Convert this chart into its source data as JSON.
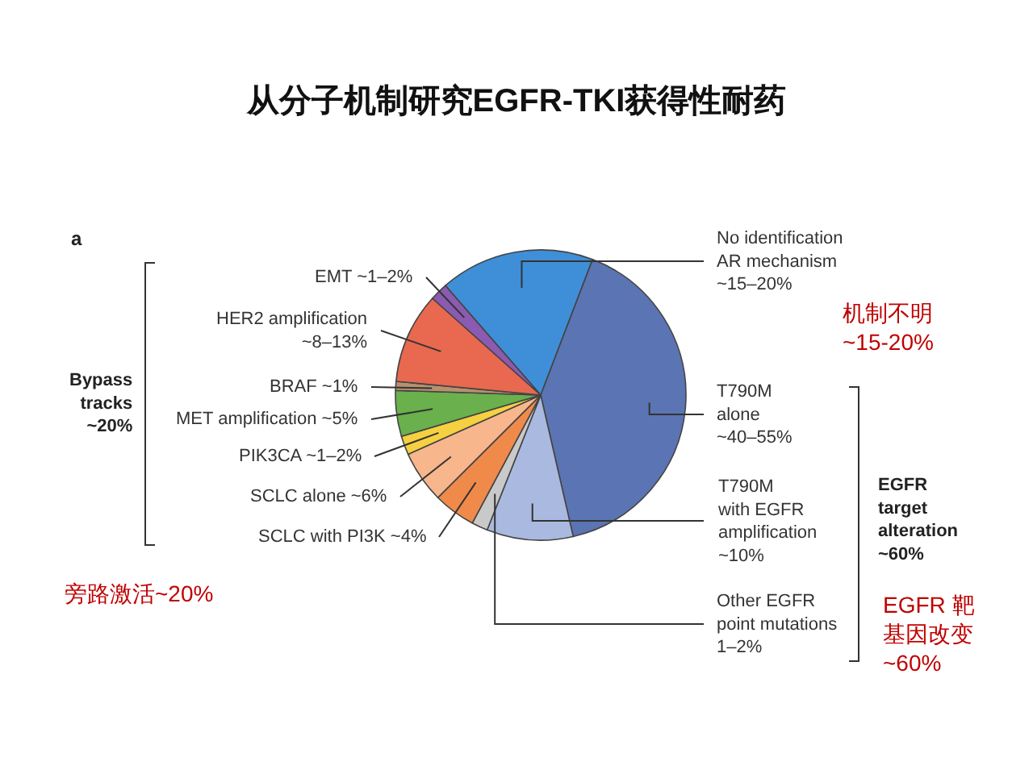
{
  "chart_data": {
    "type": "pie",
    "title": "从分子机制研究EGFR-TKI获得性耐药",
    "categories": [
      "No identification\nAR mechanism\n~15–20%",
      "T790M\nalone\n~40–55%",
      "T790M\nwith EGFR\namplification\n~10%",
      "Other EGFR\npoint mutations\n1–2%",
      "SCLC with PI3K ~4%",
      "SCLC alone ~6%",
      "PIK3CA ~1–2%",
      "MET amplification ~5%",
      "BRAF ~1%",
      "HER2 amplification\n~8–13%",
      "EMT ~1–2%"
    ],
    "values": [
      17.2,
      40.6,
      9.6,
      1.8,
      4.7,
      5.8,
      2.1,
      5.1,
      1.0,
      10.1,
      2.0
    ],
    "colors": [
      "#3f8fd8",
      "#5b74b3",
      "#aab9df",
      "#c9c9c9",
      "#f08a4b",
      "#f8b68c",
      "#f5d040",
      "#6ab04c",
      "#b8906e",
      "#e8694f",
      "#8a5bb0"
    ],
    "legend": false,
    "annotations": [
      "a",
      "Bypass\ntracks\n~20%",
      "EGFR\ntarget\nalteration\n~60%",
      "机制不明\n~15-20%",
      "旁路激活~20%",
      "EGFR 靶",
      "基因改变\n~60%"
    ]
  }
}
